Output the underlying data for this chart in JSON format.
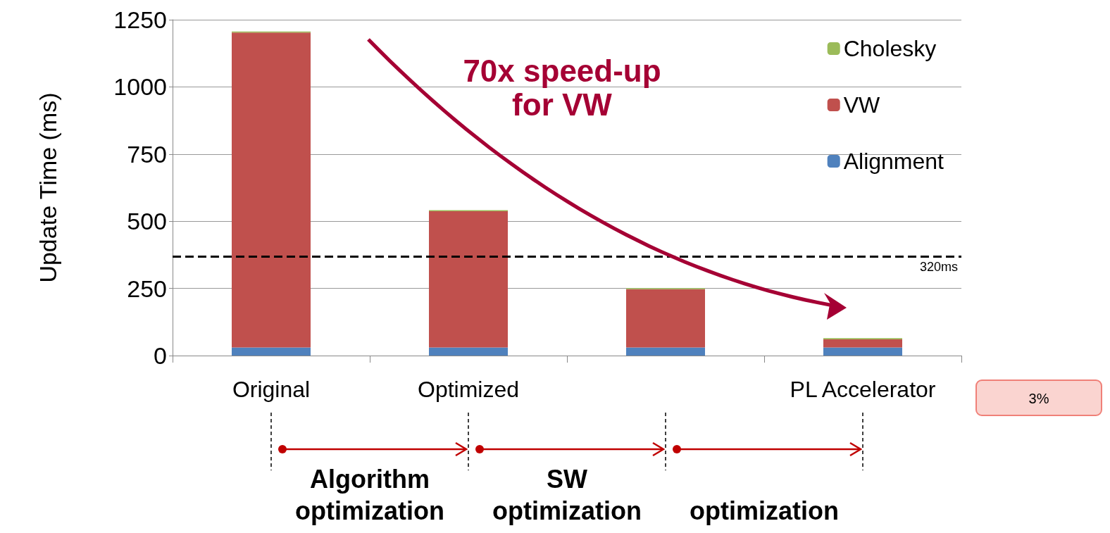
{
  "chart_data": {
    "type": "bar",
    "stacked": true,
    "ylabel": "Update Time (ms)",
    "categories": [
      "Original",
      "Optimized",
      null,
      "PL Accelerator"
    ],
    "series": [
      {
        "name": "Alignment",
        "color": "#4f81bd",
        "values": [
          30,
          30,
          30,
          30
        ]
      },
      {
        "name": "VW",
        "color": "#c0504d",
        "values": [
          1172,
          507,
          217,
          30
        ]
      },
      {
        "name": "Cholesky",
        "color": "#9bbb59",
        "values": [
          4,
          4,
          4,
          5
        ]
      }
    ],
    "ylim": [
      0,
      1250
    ],
    "yticks": [
      0,
      250,
      500,
      750,
      1000,
      1250
    ],
    "grid": "y",
    "legend": "top right",
    "ref_lines": [
      {
        "axis": "y",
        "value": 368,
        "label": "320ms",
        "color": "#000000",
        "line_style": "dashed"
      }
    ],
    "annotations": [
      "70x speed-up\nfor VW",
      "Algorithm\noptimization",
      "SW\noptimization",
      "optimization",
      "3%"
    ]
  }
}
